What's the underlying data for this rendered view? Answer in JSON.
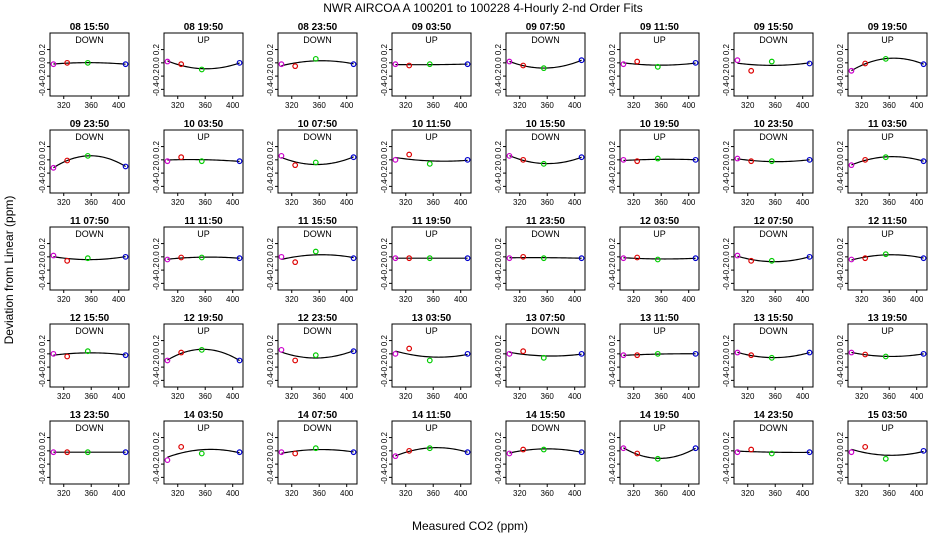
{
  "chart_data": {
    "type": "scatter",
    "title": "NWR   AIRCOA A   100201 to 100228   4-Hourly 2-nd Order Fits",
    "xlabel": "Measured CO2 (ppm)",
    "ylabel": "Deviation from Linear (ppm)",
    "xlim": [
      300,
      415
    ],
    "ylim": [
      -0.5,
      0.45
    ],
    "x_ticks": [
      "320",
      "360",
      "400"
    ],
    "y_ticks": [
      "0.2",
      "0.0",
      "-0.2",
      "-0.4"
    ],
    "point_x": [
      305,
      325,
      355,
      410
    ],
    "point_colors": [
      "#cc00cc",
      "#dd0000",
      "#00cc00",
      "#0000cc"
    ],
    "fit_color": "#000000",
    "grid": false,
    "legend": "none",
    "panels": [
      {
        "label": "08 15:50",
        "dir": "DOWN",
        "y": [
          -0.02,
          0.0,
          0.0,
          -0.02
        ]
      },
      {
        "label": "08 19:50",
        "dir": "UP",
        "y": [
          0.02,
          -0.02,
          -0.1,
          0.0
        ]
      },
      {
        "label": "08 23:50",
        "dir": "DOWN",
        "y": [
          -0.02,
          -0.05,
          0.06,
          -0.02
        ]
      },
      {
        "label": "09 03:50",
        "dir": "UP",
        "y": [
          -0.02,
          -0.04,
          -0.02,
          -0.02
        ]
      },
      {
        "label": "09 07:50",
        "dir": "DOWN",
        "y": [
          0.02,
          -0.04,
          -0.08,
          0.04
        ]
      },
      {
        "label": "09 11:50",
        "dir": "UP",
        "y": [
          -0.02,
          0.02,
          -0.06,
          0.0
        ]
      },
      {
        "label": "09 15:50",
        "dir": "DOWN",
        "y": [
          0.04,
          -0.12,
          0.02,
          -0.01
        ]
      },
      {
        "label": "09 19:50",
        "dir": "UP",
        "y": [
          -0.12,
          -0.01,
          0.06,
          -0.02
        ]
      },
      {
        "label": "09 23:50",
        "dir": "DOWN",
        "y": [
          -0.12,
          -0.01,
          0.06,
          -0.1
        ]
      },
      {
        "label": "10 03:50",
        "dir": "UP",
        "y": [
          -0.02,
          0.04,
          -0.02,
          -0.02
        ]
      },
      {
        "label": "10 07:50",
        "dir": "DOWN",
        "y": [
          0.06,
          -0.08,
          -0.04,
          0.04
        ]
      },
      {
        "label": "10 11:50",
        "dir": "UP",
        "y": [
          0.0,
          0.08,
          -0.06,
          0.0
        ]
      },
      {
        "label": "10 15:50",
        "dir": "DOWN",
        "y": [
          0.06,
          0.0,
          -0.06,
          0.04
        ]
      },
      {
        "label": "10 19:50",
        "dir": "UP",
        "y": [
          0.0,
          -0.02,
          0.02,
          0.0
        ]
      },
      {
        "label": "10 23:50",
        "dir": "DOWN",
        "y": [
          0.02,
          -0.02,
          -0.02,
          0.0
        ]
      },
      {
        "label": "11 03:50",
        "dir": "UP",
        "y": [
          -0.08,
          0.0,
          0.04,
          -0.02
        ]
      },
      {
        "label": "11 07:50",
        "dir": "DOWN",
        "y": [
          0.02,
          -0.06,
          -0.02,
          0.0
        ]
      },
      {
        "label": "11 11:50",
        "dir": "UP",
        "y": [
          -0.04,
          -0.01,
          -0.01,
          -0.02
        ]
      },
      {
        "label": "11 15:50",
        "dir": "DOWN",
        "y": [
          0.0,
          -0.08,
          0.08,
          -0.02
        ]
      },
      {
        "label": "11 19:50",
        "dir": "UP",
        "y": [
          -0.02,
          -0.02,
          -0.02,
          -0.02
        ]
      },
      {
        "label": "11 23:50",
        "dir": "DOWN",
        "y": [
          -0.02,
          0.0,
          -0.02,
          -0.02
        ]
      },
      {
        "label": "12 03:50",
        "dir": "UP",
        "y": [
          -0.02,
          -0.01,
          -0.04,
          -0.02
        ]
      },
      {
        "label": "12 07:50",
        "dir": "DOWN",
        "y": [
          0.02,
          -0.06,
          -0.06,
          0.0
        ]
      },
      {
        "label": "12 11:50",
        "dir": "UP",
        "y": [
          -0.04,
          -0.02,
          0.04,
          -0.02
        ]
      },
      {
        "label": "12 15:50",
        "dir": "DOWN",
        "y": [
          0.0,
          -0.04,
          0.04,
          -0.02
        ]
      },
      {
        "label": "12 19:50",
        "dir": "UP",
        "y": [
          -0.1,
          0.02,
          0.06,
          -0.1
        ]
      },
      {
        "label": "12 23:50",
        "dir": "DOWN",
        "y": [
          0.06,
          -0.1,
          -0.02,
          0.04
        ]
      },
      {
        "label": "13 03:50",
        "dir": "UP",
        "y": [
          0.0,
          0.08,
          -0.1,
          0.0
        ]
      },
      {
        "label": "13 07:50",
        "dir": "DOWN",
        "y": [
          0.0,
          0.04,
          -0.06,
          0.0
        ]
      },
      {
        "label": "13 11:50",
        "dir": "UP",
        "y": [
          -0.02,
          -0.02,
          0.0,
          0.0
        ]
      },
      {
        "label": "13 15:50",
        "dir": "DOWN",
        "y": [
          0.02,
          -0.02,
          -0.06,
          0.02
        ]
      },
      {
        "label": "13 19:50",
        "dir": "UP",
        "y": [
          0.02,
          -0.01,
          -0.04,
          0.0
        ]
      },
      {
        "label": "13 23:50",
        "dir": "DOWN",
        "y": [
          -0.02,
          -0.02,
          -0.02,
          -0.02
        ]
      },
      {
        "label": "14 03:50",
        "dir": "UP",
        "y": [
          -0.14,
          0.06,
          -0.04,
          -0.02
        ]
      },
      {
        "label": "14 07:50",
        "dir": "DOWN",
        "y": [
          -0.02,
          -0.04,
          0.04,
          -0.02
        ]
      },
      {
        "label": "14 11:50",
        "dir": "UP",
        "y": [
          -0.08,
          0.0,
          0.04,
          -0.02
        ]
      },
      {
        "label": "14 15:50",
        "dir": "DOWN",
        "y": [
          -0.04,
          0.02,
          0.02,
          -0.02
        ]
      },
      {
        "label": "14 19:50",
        "dir": "UP",
        "y": [
          0.04,
          -0.04,
          -0.12,
          0.04
        ]
      },
      {
        "label": "14 23:50",
        "dir": "DOWN",
        "y": [
          -0.02,
          0.02,
          -0.04,
          -0.02
        ]
      },
      {
        "label": "15 03:50",
        "dir": "UP",
        "y": [
          -0.02,
          0.06,
          -0.12,
          0.0
        ]
      }
    ]
  }
}
